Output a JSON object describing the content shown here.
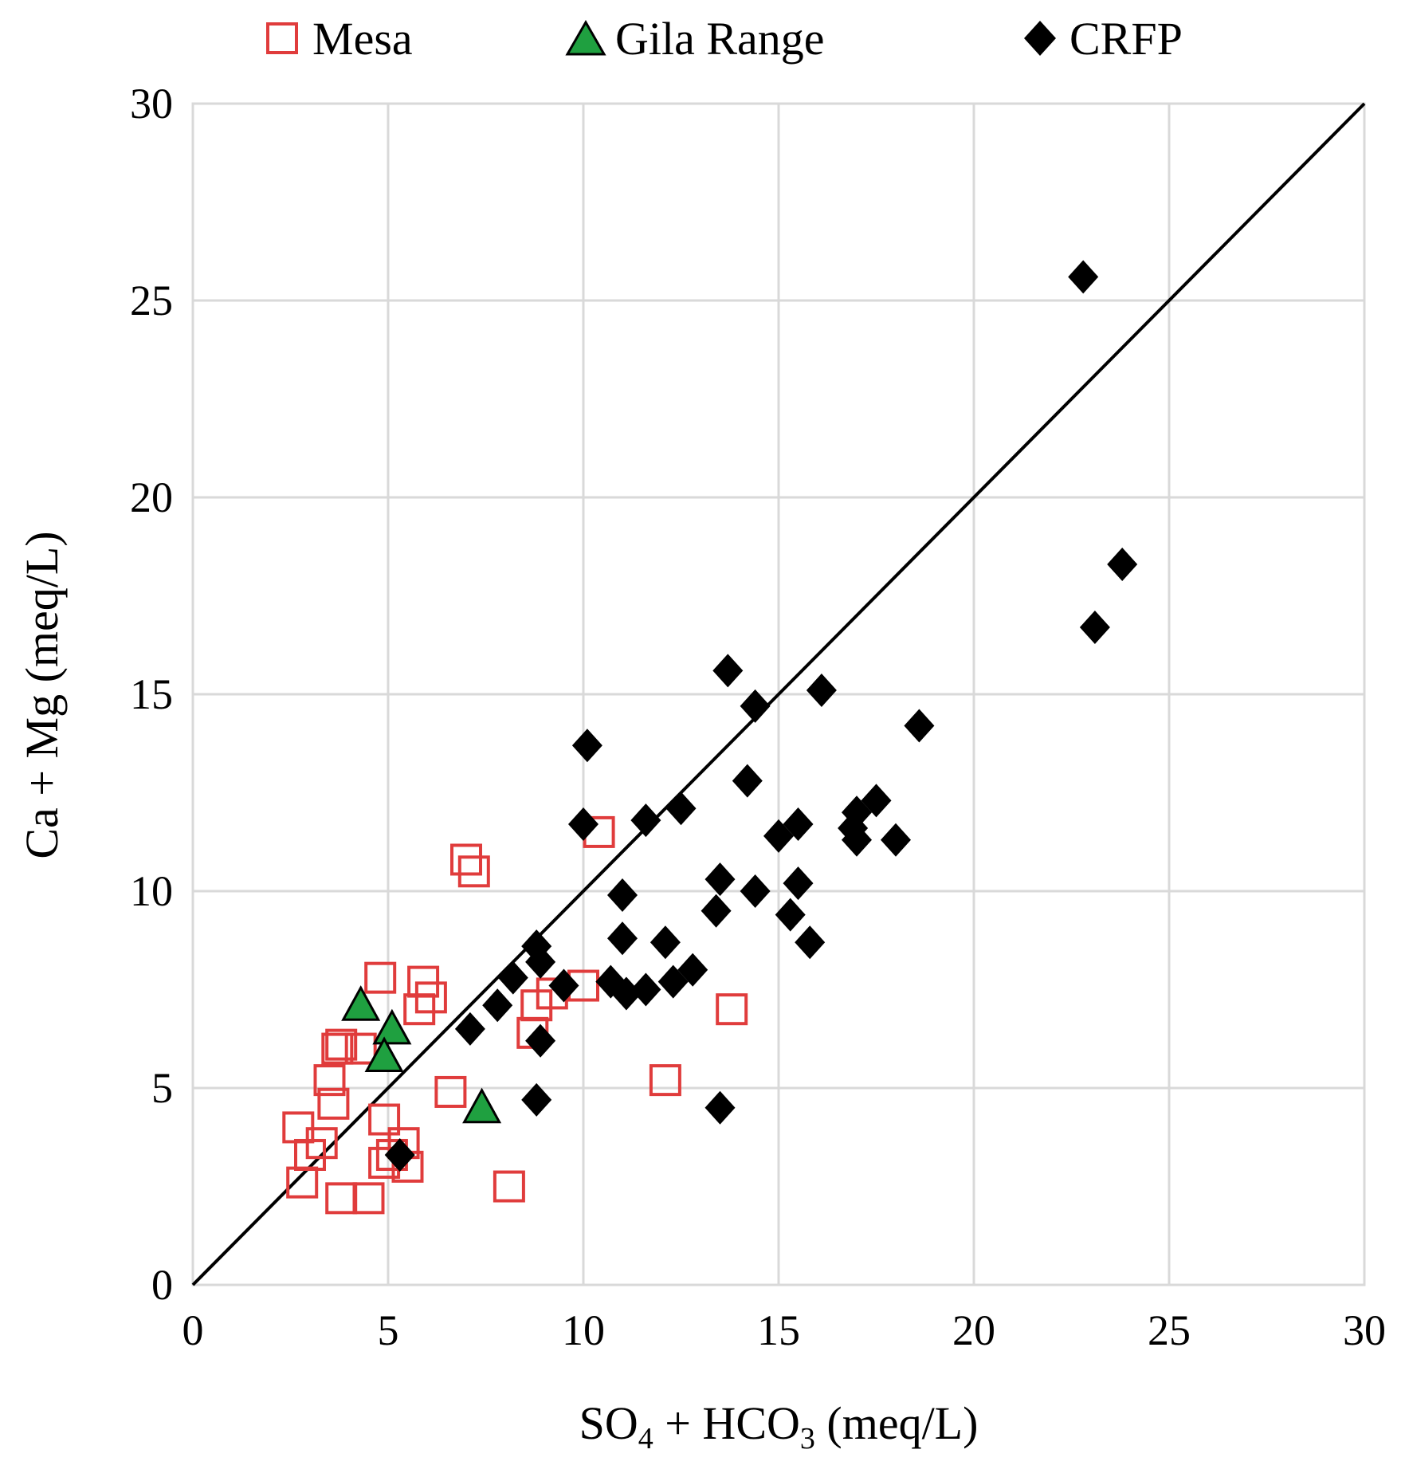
{
  "chart_data": {
    "type": "scatter",
    "title": "",
    "xlabel": {
      "base": "SO",
      "sub1": "4",
      "mid": " + HCO",
      "sub2": "3",
      "tail": " (meq/L)"
    },
    "ylabel": "Ca + Mg (meq/L)",
    "xlim": [
      0,
      30
    ],
    "ylim": [
      0,
      30
    ],
    "xticks": [
      0,
      5,
      10,
      15,
      20,
      25,
      30
    ],
    "yticks": [
      0,
      5,
      10,
      15,
      20,
      25,
      30
    ],
    "grid": true,
    "legend_position": "top",
    "reference_line": {
      "name": "1:1 line",
      "from": [
        0,
        0
      ],
      "to": [
        30,
        30
      ],
      "color": "#000000"
    },
    "series": [
      {
        "name": "Mesa",
        "marker": "square-open",
        "color": "#e03c3c",
        "points": [
          [
            2.7,
            4.0
          ],
          [
            2.8,
            2.6
          ],
          [
            3.0,
            3.3
          ],
          [
            3.3,
            3.6
          ],
          [
            3.5,
            5.2
          ],
          [
            3.7,
            6.0
          ],
          [
            3.8,
            6.1
          ],
          [
            3.6,
            4.6
          ],
          [
            3.8,
            2.2
          ],
          [
            4.5,
            2.2
          ],
          [
            4.3,
            6.0
          ],
          [
            4.8,
            7.8
          ],
          [
            4.9,
            4.2
          ],
          [
            4.9,
            3.1
          ],
          [
            5.1,
            3.3
          ],
          [
            5.4,
            3.6
          ],
          [
            5.5,
            3.0
          ],
          [
            5.8,
            7.0
          ],
          [
            5.9,
            7.7
          ],
          [
            6.1,
            7.3
          ],
          [
            6.6,
            4.9
          ],
          [
            7.0,
            10.8
          ],
          [
            7.2,
            10.5
          ],
          [
            8.1,
            2.5
          ],
          [
            8.7,
            6.4
          ],
          [
            8.8,
            7.1
          ],
          [
            9.2,
            7.4
          ],
          [
            10.0,
            7.6
          ],
          [
            10.4,
            11.5
          ],
          [
            12.1,
            5.2
          ],
          [
            13.8,
            7.0
          ]
        ]
      },
      {
        "name": "Gila Range",
        "marker": "triangle",
        "color": "#1fa040",
        "points": [
          [
            4.3,
            7.1
          ],
          [
            5.1,
            6.5
          ],
          [
            4.9,
            5.8
          ],
          [
            7.4,
            4.5
          ]
        ]
      },
      {
        "name": "CRFP",
        "marker": "diamond",
        "color": "#000000",
        "points": [
          [
            5.3,
            3.3
          ],
          [
            7.1,
            6.5
          ],
          [
            7.8,
            7.1
          ],
          [
            8.2,
            7.8
          ],
          [
            8.8,
            8.6
          ],
          [
            8.9,
            8.2
          ],
          [
            8.9,
            6.2
          ],
          [
            8.8,
            4.7
          ],
          [
            9.5,
            7.6
          ],
          [
            10.1,
            13.7
          ],
          [
            10.0,
            11.7
          ],
          [
            10.7,
            7.7
          ],
          [
            11.0,
            9.9
          ],
          [
            11.0,
            8.8
          ],
          [
            11.1,
            7.4
          ],
          [
            11.6,
            11.8
          ],
          [
            11.6,
            7.5
          ],
          [
            12.1,
            8.7
          ],
          [
            12.3,
            7.7
          ],
          [
            12.5,
            12.1
          ],
          [
            12.8,
            8.0
          ],
          [
            13.4,
            9.5
          ],
          [
            13.5,
            10.3
          ],
          [
            13.5,
            4.5
          ],
          [
            13.7,
            15.6
          ],
          [
            14.2,
            12.8
          ],
          [
            14.4,
            14.7
          ],
          [
            14.4,
            10.0
          ],
          [
            15.0,
            11.4
          ],
          [
            15.3,
            9.4
          ],
          [
            15.5,
            11.7
          ],
          [
            15.5,
            10.2
          ],
          [
            15.8,
            8.7
          ],
          [
            16.1,
            15.1
          ],
          [
            16.9,
            11.6
          ],
          [
            17.0,
            12.0
          ],
          [
            17.0,
            11.3
          ],
          [
            17.5,
            12.3
          ],
          [
            18.0,
            11.3
          ],
          [
            18.6,
            14.2
          ],
          [
            22.8,
            25.6
          ],
          [
            23.1,
            16.7
          ],
          [
            23.8,
            18.3
          ]
        ]
      }
    ]
  }
}
